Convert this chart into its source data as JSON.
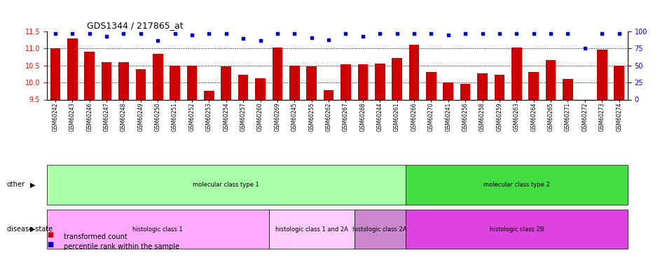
{
  "title": "GDS1344 / 217865_at",
  "samples": [
    "GSM60242",
    "GSM60243",
    "GSM60246",
    "GSM60247",
    "GSM60248",
    "GSM60249",
    "GSM60250",
    "GSM60251",
    "GSM60252",
    "GSM60253",
    "GSM60254",
    "GSM60257",
    "GSM60260",
    "GSM60269",
    "GSM60245",
    "GSM60255",
    "GSM60262",
    "GSM60267",
    "GSM60268",
    "GSM60244",
    "GSM60261",
    "GSM60266",
    "GSM60270",
    "GSM60241",
    "GSM60256",
    "GSM60258",
    "GSM60259",
    "GSM60263",
    "GSM60264",
    "GSM60265",
    "GSM60271",
    "GSM60272",
    "GSM60273",
    "GSM60274"
  ],
  "bar_values": [
    11.0,
    11.3,
    10.9,
    10.6,
    10.6,
    10.4,
    10.85,
    10.5,
    10.5,
    9.75,
    10.48,
    10.22,
    10.12,
    11.02,
    10.5,
    10.48,
    9.78,
    10.53,
    10.53,
    10.56,
    10.72,
    11.12,
    10.3,
    10.0,
    9.97,
    10.27,
    10.22,
    11.02,
    10.3,
    10.66,
    10.1,
    9.5,
    10.97,
    10.5
  ],
  "dot_values": [
    97,
    97,
    97,
    93,
    97,
    97,
    87,
    97,
    95,
    97,
    97,
    90,
    87,
    97,
    97,
    91,
    88,
    97,
    93,
    97,
    97,
    97,
    97,
    95,
    97,
    97,
    97,
    97,
    97,
    97,
    97,
    75,
    97,
    97
  ],
  "ylim_left": [
    9.5,
    11.5
  ],
  "ylim_right": [
    0,
    100
  ],
  "yticks_left": [
    9.5,
    10.0,
    10.5,
    11.0,
    11.5
  ],
  "yticks_right": [
    0,
    25,
    50,
    75,
    100
  ],
  "bar_color": "#cc0000",
  "dot_color": "#0000cc",
  "bg_color": "#ffffff",
  "annotation_rows": [
    {
      "label": "other",
      "segments": [
        {
          "text": "molecular class type 1",
          "start": 0,
          "end": 21,
          "color": "#aaffaa"
        },
        {
          "text": "molecular class type 2",
          "start": 21,
          "end": 34,
          "color": "#44dd44"
        }
      ]
    },
    {
      "label": "disease state",
      "segments": [
        {
          "text": "histologic class 1",
          "start": 0,
          "end": 13,
          "color": "#ffaaff"
        },
        {
          "text": "histologic class 1 and 2A",
          "start": 13,
          "end": 18,
          "color": "#ffccff"
        },
        {
          "text": "histologic class 2A",
          "start": 18,
          "end": 21,
          "color": "#cc88cc"
        },
        {
          "text": "histologic class 2B",
          "start": 21,
          "end": 34,
          "color": "#dd44dd"
        }
      ]
    }
  ],
  "legend_items": [
    {
      "label": "transformed count",
      "color": "#cc0000",
      "marker": "s"
    },
    {
      "label": "percentile rank within the sample",
      "color": "#0000cc",
      "marker": "s"
    }
  ]
}
